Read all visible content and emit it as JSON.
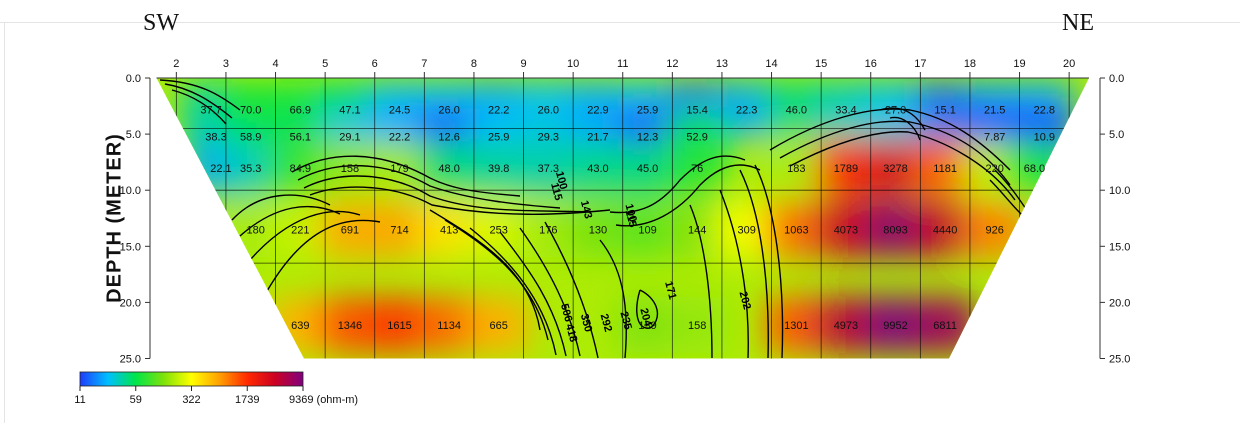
{
  "labels": {
    "left": "SW",
    "right": "NE"
  },
  "chart_data": {
    "type": "heatmap",
    "title": "",
    "xlabel": "",
    "ylabel": "DEPTH (METER)",
    "x_ticks": [
      2,
      3,
      4,
      5,
      6,
      7,
      8,
      9,
      10,
      11,
      12,
      13,
      14,
      15,
      16,
      17,
      18,
      19,
      20
    ],
    "y_ticks": [
      "0.0",
      "5.0",
      "10.0",
      "15.0",
      "20.0",
      "25.0"
    ],
    "xlim": [
      1.6,
      20.4
    ],
    "ylim": [
      0,
      25
    ],
    "grid": true,
    "cells": [
      {
        "x": 2.7,
        "y": 2.8,
        "label": "37.7"
      },
      {
        "x": 3.5,
        "y": 2.8,
        "label": "70.0"
      },
      {
        "x": 4.5,
        "y": 2.8,
        "label": "66.9"
      },
      {
        "x": 5.5,
        "y": 2.8,
        "label": "47.1"
      },
      {
        "x": 6.5,
        "y": 2.8,
        "label": "24.5"
      },
      {
        "x": 7.5,
        "y": 2.8,
        "label": "26.0"
      },
      {
        "x": 8.5,
        "y": 2.8,
        "label": "22.2"
      },
      {
        "x": 9.5,
        "y": 2.8,
        "label": "26.0"
      },
      {
        "x": 10.5,
        "y": 2.8,
        "label": "22.9"
      },
      {
        "x": 11.5,
        "y": 2.8,
        "label": "25.9"
      },
      {
        "x": 12.5,
        "y": 2.8,
        "label": "15.4"
      },
      {
        "x": 13.5,
        "y": 2.8,
        "label": "22.3"
      },
      {
        "x": 14.5,
        "y": 2.8,
        "label": "46.0"
      },
      {
        "x": 15.5,
        "y": 2.8,
        "label": "33.4"
      },
      {
        "x": 16.5,
        "y": 2.8,
        "label": "27.0"
      },
      {
        "x": 17.5,
        "y": 2.8,
        "label": "15.1"
      },
      {
        "x": 18.5,
        "y": 2.8,
        "label": "21.5"
      },
      {
        "x": 19.5,
        "y": 2.8,
        "label": "22.8"
      },
      {
        "x": 2.8,
        "y": 5.2,
        "label": "38.3"
      },
      {
        "x": 3.5,
        "y": 5.2,
        "label": "58.9"
      },
      {
        "x": 4.5,
        "y": 5.2,
        "label": "56.1"
      },
      {
        "x": 5.5,
        "y": 5.2,
        "label": "29.1"
      },
      {
        "x": 6.5,
        "y": 5.2,
        "label": "22.2"
      },
      {
        "x": 7.5,
        "y": 5.2,
        "label": "12.6"
      },
      {
        "x": 8.5,
        "y": 5.2,
        "label": "25.9"
      },
      {
        "x": 9.5,
        "y": 5.2,
        "label": "29.3"
      },
      {
        "x": 10.5,
        "y": 5.2,
        "label": "21.7"
      },
      {
        "x": 11.5,
        "y": 5.2,
        "label": "12.3"
      },
      {
        "x": 12.5,
        "y": 5.2,
        "label": "52.9"
      },
      {
        "x": 18.5,
        "y": 5.2,
        "label": "7.87"
      },
      {
        "x": 19.5,
        "y": 5.2,
        "label": "10.9"
      },
      {
        "x": 2.9,
        "y": 8.0,
        "label": "22.1"
      },
      {
        "x": 3.5,
        "y": 8.0,
        "label": "35.3"
      },
      {
        "x": 4.5,
        "y": 8.0,
        "label": "84.9"
      },
      {
        "x": 5.5,
        "y": 8.0,
        "label": "158"
      },
      {
        "x": 6.5,
        "y": 8.0,
        "label": "179"
      },
      {
        "x": 7.5,
        "y": 8.0,
        "label": "48.0"
      },
      {
        "x": 8.5,
        "y": 8.0,
        "label": "39.8"
      },
      {
        "x": 9.5,
        "y": 8.0,
        "label": "37.3"
      },
      {
        "x": 10.5,
        "y": 8.0,
        "label": "43.0"
      },
      {
        "x": 11.5,
        "y": 8.0,
        "label": "45.0"
      },
      {
        "x": 12.5,
        "y": 8.0,
        "label": "76"
      },
      {
        "x": 14.5,
        "y": 8.0,
        "label": "183"
      },
      {
        "x": 15.5,
        "y": 8.0,
        "label": "1789"
      },
      {
        "x": 16.5,
        "y": 8.0,
        "label": "3278"
      },
      {
        "x": 17.5,
        "y": 8.0,
        "label": "1181"
      },
      {
        "x": 18.5,
        "y": 8.0,
        "label": "220"
      },
      {
        "x": 19.3,
        "y": 8.0,
        "label": "68.0"
      },
      {
        "x": 3.6,
        "y": 13.5,
        "label": "180"
      },
      {
        "x": 4.5,
        "y": 13.5,
        "label": "221"
      },
      {
        "x": 5.5,
        "y": 13.5,
        "label": "691"
      },
      {
        "x": 6.5,
        "y": 13.5,
        "label": "714"
      },
      {
        "x": 7.5,
        "y": 13.5,
        "label": "413"
      },
      {
        "x": 8.5,
        "y": 13.5,
        "label": "253"
      },
      {
        "x": 9.5,
        "y": 13.5,
        "label": "176"
      },
      {
        "x": 10.5,
        "y": 13.5,
        "label": "130"
      },
      {
        "x": 11.5,
        "y": 13.5,
        "label": "109"
      },
      {
        "x": 12.5,
        "y": 13.5,
        "label": "144"
      },
      {
        "x": 13.5,
        "y": 13.5,
        "label": "309"
      },
      {
        "x": 14.5,
        "y": 13.5,
        "label": "1063"
      },
      {
        "x": 15.5,
        "y": 13.5,
        "label": "4073"
      },
      {
        "x": 16.5,
        "y": 13.5,
        "label": "8093"
      },
      {
        "x": 17.5,
        "y": 13.5,
        "label": "4440"
      },
      {
        "x": 18.5,
        "y": 13.5,
        "label": "926"
      },
      {
        "x": 4.5,
        "y": 22.0,
        "label": "639"
      },
      {
        "x": 5.5,
        "y": 22.0,
        "label": "1346"
      },
      {
        "x": 6.5,
        "y": 22.0,
        "label": "1615"
      },
      {
        "x": 7.5,
        "y": 22.0,
        "label": "1134"
      },
      {
        "x": 8.5,
        "y": 22.0,
        "label": "665"
      },
      {
        "x": 11.5,
        "y": 22.0,
        "label": "139"
      },
      {
        "x": 12.5,
        "y": 22.0,
        "label": "158"
      },
      {
        "x": 14.5,
        "y": 22.0,
        "label": "1301"
      },
      {
        "x": 15.5,
        "y": 22.0,
        "label": "4973"
      },
      {
        "x": 16.5,
        "y": 22.0,
        "label": "9952"
      },
      {
        "x": 17.5,
        "y": 22.0,
        "label": "6811"
      }
    ],
    "contour_labels": [
      {
        "x": 9.7,
        "y": 9.2,
        "label": "100"
      },
      {
        "x": 9.6,
        "y": 10.2,
        "label": "115"
      },
      {
        "x": 10.2,
        "y": 11.8,
        "label": "143"
      },
      {
        "x": 11.1,
        "y": 12.1,
        "label": "100"
      },
      {
        "x": 11.1,
        "y": 12.6,
        "label": "115"
      },
      {
        "x": 9.8,
        "y": 21.0,
        "label": "506"
      },
      {
        "x": 9.9,
        "y": 22.8,
        "label": "418"
      },
      {
        "x": 10.2,
        "y": 21.9,
        "label": "350"
      },
      {
        "x": 10.6,
        "y": 21.9,
        "label": "292"
      },
      {
        "x": 11.0,
        "y": 21.7,
        "label": "235"
      },
      {
        "x": 11.4,
        "y": 21.4,
        "label": "204"
      },
      {
        "x": 11.9,
        "y": 19.0,
        "label": "171"
      },
      {
        "x": 13.4,
        "y": 19.9,
        "label": "202"
      }
    ],
    "colorbar": {
      "min": 11,
      "max": 9369,
      "tick_labels": [
        "11",
        "59",
        "322",
        "1739",
        "9369 (ohm-m)"
      ],
      "colors": [
        "#1f3cff",
        "#00bfff",
        "#00e54a",
        "#7fe20a",
        "#ffff00",
        "#ffa000",
        "#ff2a00",
        "#cc0022",
        "#800080"
      ]
    }
  }
}
